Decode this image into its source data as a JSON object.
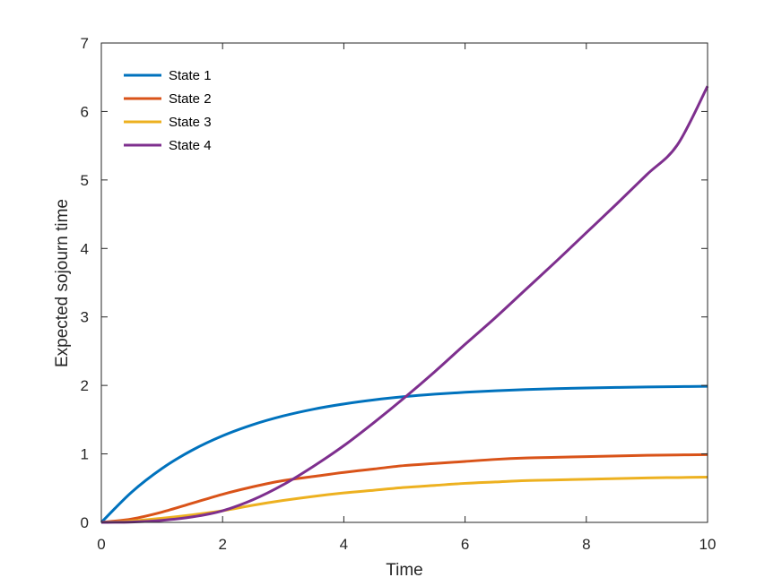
{
  "chart_data": {
    "type": "line",
    "title": "",
    "xlabel": "Time",
    "ylabel": "Expected sojourn time",
    "xlim": [
      0,
      10
    ],
    "ylim": [
      0,
      7
    ],
    "xticks": [
      0,
      2,
      4,
      6,
      8,
      10
    ],
    "yticks": [
      0,
      1,
      2,
      3,
      4,
      5,
      6,
      7
    ],
    "grid": false,
    "legend_position": "upper-left",
    "x": [
      0,
      0.5,
      1,
      1.5,
      2,
      2.5,
      3,
      3.5,
      4,
      4.5,
      5,
      5.5,
      6,
      6.5,
      7,
      7.5,
      8,
      8.5,
      9,
      9.5,
      10
    ],
    "series": [
      {
        "name": "State 1",
        "color": "#0072BD",
        "values": [
          0,
          0.442,
          0.787,
          1.055,
          1.264,
          1.427,
          1.554,
          1.653,
          1.729,
          1.789,
          1.836,
          1.872,
          1.9,
          1.922,
          1.94,
          1.953,
          1.963,
          1.971,
          1.978,
          1.983,
          1.987
        ]
      },
      {
        "name": "State 2",
        "color": "#D95319",
        "values": [
          0,
          0.05,
          0.15,
          0.28,
          0.41,
          0.52,
          0.61,
          0.67,
          0.73,
          0.78,
          0.83,
          0.86,
          0.89,
          0.92,
          0.94,
          0.95,
          0.96,
          0.97,
          0.98,
          0.985,
          0.99
        ]
      },
      {
        "name": "State 3",
        "color": "#EDB120",
        "values": [
          0,
          0.02,
          0.06,
          0.11,
          0.17,
          0.25,
          0.32,
          0.38,
          0.43,
          0.47,
          0.51,
          0.54,
          0.57,
          0.59,
          0.61,
          0.62,
          0.63,
          0.64,
          0.65,
          0.655,
          0.66
        ]
      },
      {
        "name": "State 4",
        "color": "#7E2F8E",
        "values": [
          0,
          0.005,
          0.03,
          0.08,
          0.17,
          0.33,
          0.55,
          0.82,
          1.12,
          1.46,
          1.82,
          2.2,
          2.6,
          2.99,
          3.4,
          3.81,
          4.23,
          4.65,
          5.08,
          5.51,
          6.37
        ]
      }
    ]
  }
}
